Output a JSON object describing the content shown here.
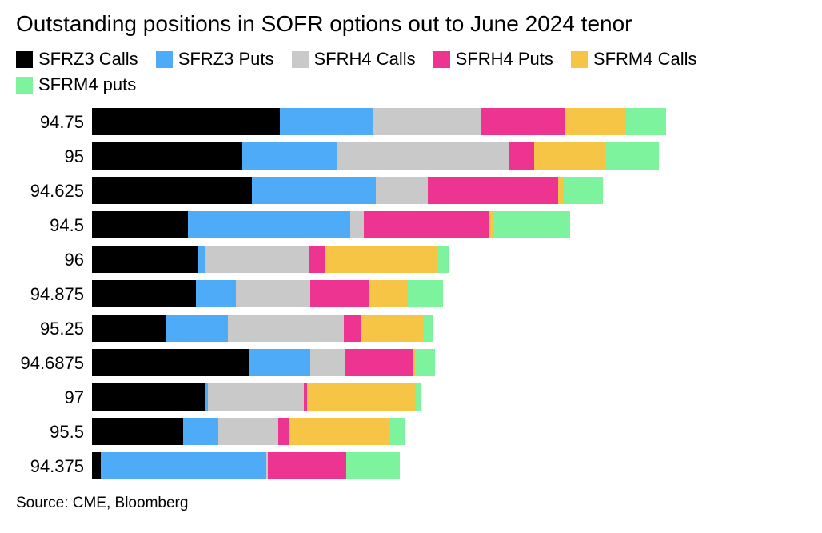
{
  "title": "Outstanding positions in SOFR options out to June 2024 tenor",
  "source": "Source: CME, Bloomberg",
  "legend": [
    {
      "label": "SFRZ3 Calls",
      "color": "#000000"
    },
    {
      "label": "SFRZ3 Puts",
      "color": "#4dabf7"
    },
    {
      "label": "SFRH4 Calls",
      "color": "#c9c9c9"
    },
    {
      "label": "SFRH4 Puts",
      "color": "#ec3490"
    },
    {
      "label": "SFRM4 Calls",
      "color": "#f6c545"
    },
    {
      "label": "SFRM4 puts",
      "color": "#7ef39d"
    }
  ],
  "chart_data": {
    "type": "bar",
    "orientation": "horizontal",
    "stacked": true,
    "title": "Outstanding positions in SOFR options out to June 2024 tenor",
    "categories": [
      "94.75",
      "95",
      "94.625",
      "94.5",
      "96",
      "94.875",
      "95.25",
      "94.6875",
      "97",
      "95.5",
      "94.375"
    ],
    "series": [
      {
        "name": "SFRZ3 Calls",
        "color": "#000000",
        "values": [
          235,
          188,
          200,
          120,
          133,
          130,
          93,
          197,
          141,
          114,
          11
        ]
      },
      {
        "name": "SFRZ3 Puts",
        "color": "#4dabf7",
        "values": [
          117,
          119,
          155,
          203,
          8,
          50,
          77,
          76,
          4,
          44,
          207
        ]
      },
      {
        "name": "SFRH4 Calls",
        "color": "#c9c9c9",
        "values": [
          135,
          215,
          65,
          17,
          130,
          93,
          145,
          44,
          120,
          75,
          2
        ]
      },
      {
        "name": "SFRH4 Puts",
        "color": "#ec3490",
        "values": [
          104,
          31,
          163,
          156,
          21,
          74,
          22,
          85,
          4,
          14,
          98
        ]
      },
      {
        "name": "SFRM4 Calls",
        "color": "#f6c545",
        "values": [
          77,
          90,
          7,
          6,
          141,
          47,
          77,
          2,
          136,
          125,
          0
        ]
      },
      {
        "name": "SFRM4 puts",
        "color": "#7ef39d",
        "values": [
          50,
          66,
          49,
          96,
          14,
          45,
          13,
          25,
          6,
          19,
          67
        ]
      }
    ],
    "xlim": [
      0,
      900
    ],
    "grid": false,
    "legend_position": "top-left"
  }
}
